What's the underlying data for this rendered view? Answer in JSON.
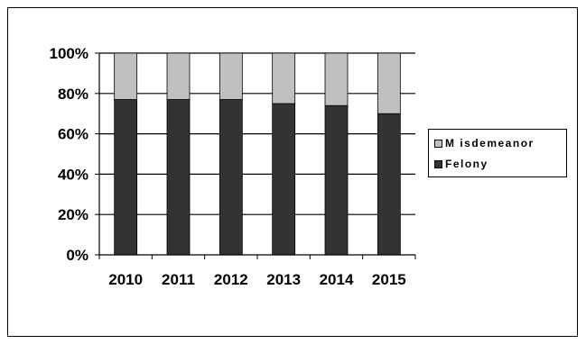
{
  "chart_data": {
    "type": "bar",
    "stacked": true,
    "categories": [
      "2010",
      "2011",
      "2012",
      "2013",
      "2014",
      "2015"
    ],
    "series": [
      {
        "name": "Felony",
        "values": [
          77,
          77,
          77,
          75,
          74,
          70
        ],
        "color": "#333333"
      },
      {
        "name": "M isdemeanor",
        "values": [
          23,
          23,
          23,
          25,
          26,
          30
        ],
        "color": "#c0c0c0"
      }
    ],
    "ylim": [
      0,
      100
    ],
    "yticks": [
      "0%",
      "20%",
      "40%",
      "60%",
      "80%",
      "100%"
    ],
    "ytick_values": [
      0,
      20,
      40,
      60,
      80,
      100
    ],
    "grid": true,
    "legend_position": "right",
    "title": "",
    "xlabel": "",
    "ylabel": ""
  },
  "legend": {
    "items": [
      {
        "label": "M isdemeanor",
        "color": "#c0c0c0"
      },
      {
        "label": "Felony",
        "color": "#333333"
      }
    ]
  }
}
